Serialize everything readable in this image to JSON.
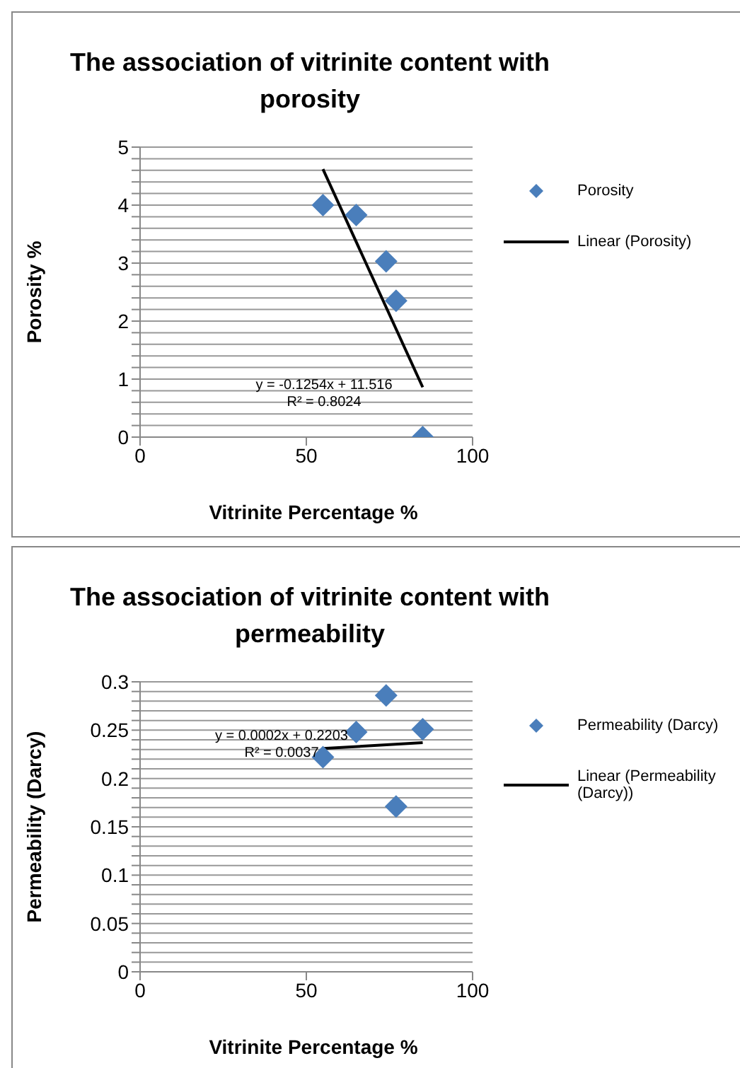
{
  "chart_data": [
    {
      "type": "scatter",
      "title": "The association of vitrinite content with porosity",
      "xlabel": "Vitrinite Percentage %",
      "ylabel": "Porosity %",
      "xlim": [
        0,
        100
      ],
      "xticks": [
        0,
        50,
        100
      ],
      "ylim": [
        0,
        5
      ],
      "yticks": [
        0,
        {
          "value": 0.2,
          "label": null
        },
        {
          "value": 0.4,
          "label": null
        },
        {
          "value": 0.6,
          "label": null
        },
        {
          "value": 0.8,
          "label": null
        },
        1,
        {
          "value": 1.2,
          "label": null
        },
        {
          "value": 1.4,
          "label": null
        },
        {
          "value": 1.6,
          "label": null
        },
        {
          "value": 1.8,
          "label": null
        },
        2,
        {
          "value": 2.2,
          "label": null
        },
        {
          "value": 2.4,
          "label": null
        },
        {
          "value": 2.6,
          "label": null
        },
        {
          "value": 2.8,
          "label": null
        },
        3,
        {
          "value": 3.2,
          "label": null
        },
        {
          "value": 3.4,
          "label": null
        },
        {
          "value": 3.6,
          "label": null
        },
        {
          "value": 3.8,
          "label": null
        },
        4,
        {
          "value": 4.2,
          "label": null
        },
        {
          "value": 4.4,
          "label": null
        },
        {
          "value": 4.6,
          "label": null
        },
        {
          "value": 4.8,
          "label": null
        },
        5
      ],
      "grid": "y",
      "legend": "right",
      "series": [
        {
          "name": "Porosity",
          "color": "#4a7ebb",
          "marker": "diamond",
          "x": [
            55,
            65,
            74,
            77,
            85
          ],
          "values": [
            4.0,
            3.83,
            3.03,
            2.35,
            0
          ]
        },
        {
          "name": "Linear (Porosity)",
          "type": "line",
          "color": "#000000",
          "marker": "none",
          "line_style": "solid",
          "x": [
            55,
            85
          ],
          "values": [
            4.62,
            0.86
          ]
        }
      ],
      "annotations": [
        "y = -0.1254x + 11.516",
        "R² = 0.8024"
      ]
    },
    {
      "type": "scatter",
      "title": "The association of vitrinite content with permeability",
      "xlabel": "Vitrinite Percentage %",
      "ylabel": "Permeability (Darcy)",
      "xlim": [
        0,
        100
      ],
      "xticks": [
        0,
        50,
        100
      ],
      "ylim": [
        0,
        0.3
      ],
      "yticks": [
        0,
        {
          "value": 0.01,
          "label": null
        },
        {
          "value": 0.02,
          "label": null
        },
        {
          "value": 0.03,
          "label": null
        },
        {
          "value": 0.04,
          "label": null
        },
        0.05,
        {
          "value": 0.06,
          "label": null
        },
        {
          "value": 0.07,
          "label": null
        },
        {
          "value": 0.08,
          "label": null
        },
        {
          "value": 0.09,
          "label": null
        },
        0.1,
        {
          "value": 0.11,
          "label": null
        },
        {
          "value": 0.12,
          "label": null
        },
        {
          "value": 0.13,
          "label": null
        },
        {
          "value": 0.14,
          "label": null
        },
        0.15,
        {
          "value": 0.16,
          "label": null
        },
        {
          "value": 0.17,
          "label": null
        },
        {
          "value": 0.18,
          "label": null
        },
        {
          "value": 0.19,
          "label": null
        },
        0.2,
        {
          "value": 0.21,
          "label": null
        },
        {
          "value": 0.22,
          "label": null
        },
        {
          "value": 0.23,
          "label": null
        },
        {
          "value": 0.24,
          "label": null
        },
        0.25,
        {
          "value": 0.26,
          "label": null
        },
        {
          "value": 0.27,
          "label": null
        },
        {
          "value": 0.28,
          "label": null
        },
        {
          "value": 0.29,
          "label": null
        },
        0.3
      ],
      "grid": "y",
      "legend": "right",
      "series": [
        {
          "name": "Permeability (Darcy)",
          "color": "#4a7ebb",
          "marker": "diamond",
          "x": [
            55,
            65,
            74,
            77,
            85
          ],
          "values": [
            0.222,
            0.248,
            0.286,
            0.171,
            0.251
          ]
        },
        {
          "name": "Linear (Permeability (Darcy))",
          "type": "line",
          "color": "#000000",
          "marker": "none",
          "line_style": "solid",
          "x": [
            55,
            85
          ],
          "values": [
            0.231,
            0.237
          ]
        }
      ],
      "annotations": [
        "y = 0.0002x + 0.2203",
        "R² = 0.0037"
      ]
    }
  ]
}
